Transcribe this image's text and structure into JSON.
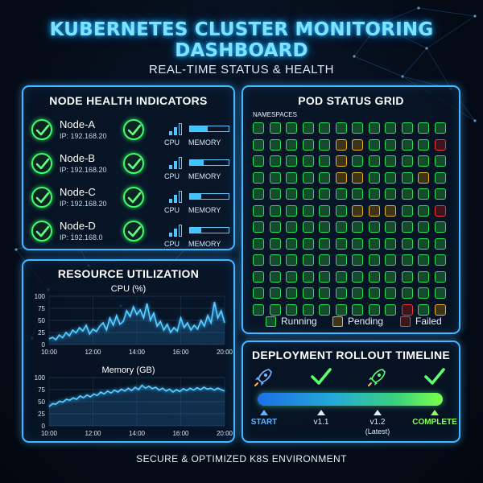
{
  "header": {
    "title": "KUBERNETES CLUSTER MONITORING DASHBOARD",
    "subtitle": "REAL-TIME STATUS & HEALTH"
  },
  "nodes": {
    "title": "NODE HEALTH INDICATORS",
    "cpu_label": "CPU",
    "memory_label": "MEMORY",
    "items": [
      {
        "name": "Node-A",
        "ip": "IP: 192.168.20",
        "cpu_bars": 2,
        "memory_fill": 0.45
      },
      {
        "name": "Node-B",
        "ip": "IP: 192.168.20",
        "cpu_bars": 2,
        "memory_fill": 0.35
      },
      {
        "name": "Node-C",
        "ip": "IP: 192.168.20",
        "cpu_bars": 2,
        "memory_fill": 0.3
      },
      {
        "name": "Node-D",
        "ip": "IP: 192.168.0",
        "cpu_bars": 2,
        "memory_fill": 0.3
      }
    ]
  },
  "resources": {
    "title": "RESOURCE UTILIZATION",
    "chart_data": [
      {
        "type": "line",
        "title": "CPU (%)",
        "ylim": [
          0,
          100
        ],
        "yticks": [
          "100",
          "75",
          "50",
          "25",
          "0"
        ],
        "xticks": [
          "10:00",
          "12:00",
          "14:00",
          "16:00",
          "20:00"
        ],
        "values": [
          12,
          15,
          10,
          20,
          14,
          25,
          18,
          30,
          24,
          35,
          28,
          40,
          22,
          32,
          27,
          38,
          45,
          30,
          55,
          40,
          60,
          42,
          48,
          70,
          58,
          78,
          62,
          72,
          55,
          85,
          50,
          65,
          38,
          48,
          30,
          42,
          25,
          35,
          28,
          55,
          35,
          45,
          30,
          40,
          32,
          50,
          38,
          60,
          45,
          88,
          55,
          70,
          45
        ]
      },
      {
        "type": "line",
        "title": "Memory (GB)",
        "ylim": [
          0,
          100
        ],
        "yticks": [
          "100",
          "75",
          "50",
          "25",
          "0"
        ],
        "xticks": [
          "10:00",
          "12:00",
          "14:00",
          "16:00",
          "20:00"
        ],
        "values": [
          40,
          46,
          45,
          51,
          49,
          55,
          53,
          58,
          55,
          62,
          58,
          64,
          60,
          66,
          63,
          70,
          66,
          72,
          68,
          74,
          70,
          76,
          72,
          78,
          73,
          80,
          75,
          84,
          78,
          82,
          77,
          80,
          74,
          78,
          72,
          76,
          70,
          75,
          71,
          77,
          73,
          78,
          74,
          79,
          75,
          80,
          76,
          78,
          74,
          78,
          75,
          72
        ]
      }
    ]
  },
  "pods": {
    "title": "POD STATUS GRID",
    "namespaces_label": "NAMESPACES",
    "rows": 12,
    "cols": 12,
    "pending": [
      [
        1,
        5
      ],
      [
        1,
        6
      ],
      [
        2,
        5
      ],
      [
        3,
        5
      ],
      [
        3,
        6
      ],
      [
        3,
        10
      ],
      [
        5,
        6
      ],
      [
        5,
        7
      ],
      [
        5,
        8
      ]
    ],
    "failed": [
      [
        1,
        11
      ],
      [
        5,
        11
      ],
      [
        11,
        9
      ]
    ],
    "pending_extra": [
      [
        11,
        11
      ]
    ],
    "legend": {
      "running": "Running",
      "pending": "Pending",
      "failed": "Failed"
    },
    "colors": {
      "running": "#2ee059",
      "pending": "#e8b42a",
      "failed": "#e83a3a"
    }
  },
  "deploy": {
    "title": "DEPLOYMENT ROLLOUT TIMELINE",
    "milestones": [
      {
        "icon": "rocket-icon",
        "label": "START",
        "color": "#5fb4ff"
      },
      {
        "icon": "check-icon",
        "label": "v1.1",
        "color": "#d9ecff"
      },
      {
        "icon": "rocket-icon",
        "label": "v1.2",
        "sub": "(Latest)",
        "color": "#d9ecff"
      },
      {
        "icon": "check-icon",
        "label": "COMPLETE",
        "color": "#8bff5a"
      }
    ]
  },
  "footer": {
    "text": "SECURE & OPTIMIZED K8S ENVIRONMENT"
  }
}
